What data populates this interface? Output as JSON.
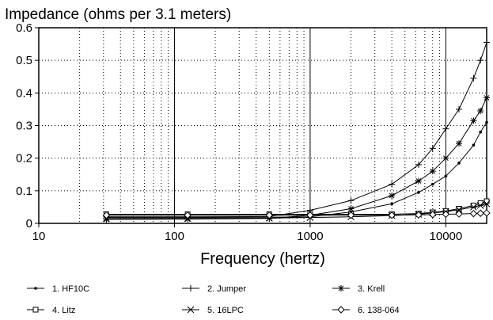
{
  "chart_data": {
    "type": "line",
    "title": "Impedance (ohms per 3.1 meters)",
    "xlabel": "Frequency (hertz)",
    "ylabel": "",
    "x_scale": "log",
    "xlim": [
      10,
      20000
    ],
    "ylim": [
      0,
      0.6
    ],
    "x_ticks": [
      10,
      100,
      1000,
      10000
    ],
    "x_tick_labels": [
      "10",
      "100",
      "1000",
      "10000"
    ],
    "y_ticks": [
      0,
      0.1,
      0.2,
      0.3,
      0.4,
      0.5,
      0.6
    ],
    "y_tick_labels": [
      "0",
      "0.1",
      "0.2",
      "0.3",
      "0.4",
      "0.5",
      "0.6"
    ],
    "grid": true,
    "legend_position": "bottom",
    "x": [
      31.5,
      125,
      500,
      1000,
      2000,
      4000,
      6300,
      8000,
      10000,
      12500,
      16000,
      18000,
      20000
    ],
    "series": [
      {
        "name": "1. HF10C",
        "marker": "dot",
        "values": [
          0.018,
          0.018,
          0.019,
          0.02,
          0.035,
          0.06,
          0.095,
          0.12,
          0.145,
          0.185,
          0.24,
          0.28,
          0.31
        ]
      },
      {
        "name": "2. Jumper",
        "marker": "plus",
        "values": [
          0.02,
          0.02,
          0.021,
          0.04,
          0.07,
          0.12,
          0.18,
          0.23,
          0.29,
          0.35,
          0.445,
          0.5,
          0.555
        ]
      },
      {
        "name": "3. Krell",
        "marker": "asterisk",
        "values": [
          0.012,
          0.013,
          0.015,
          0.025,
          0.045,
          0.085,
          0.13,
          0.16,
          0.2,
          0.245,
          0.315,
          0.345,
          0.385
        ]
      },
      {
        "name": "4. Litz",
        "marker": "square",
        "values": [
          0.028,
          0.028,
          0.028,
          0.028,
          0.028,
          0.028,
          0.03,
          0.034,
          0.038,
          0.045,
          0.055,
          0.062,
          0.068
        ]
      },
      {
        "name": "5. 16LPC",
        "marker": "x",
        "values": [
          0.015,
          0.015,
          0.016,
          0.018,
          0.02,
          0.024,
          0.028,
          0.032,
          0.036,
          0.042,
          0.05,
          0.055,
          0.06
        ]
      },
      {
        "name": "6. 138-064",
        "marker": "diamond",
        "values": [
          0.025,
          0.025,
          0.025,
          0.025,
          0.025,
          0.025,
          0.026,
          0.027,
          0.028,
          0.029,
          0.03,
          0.031,
          0.032
        ]
      }
    ]
  }
}
